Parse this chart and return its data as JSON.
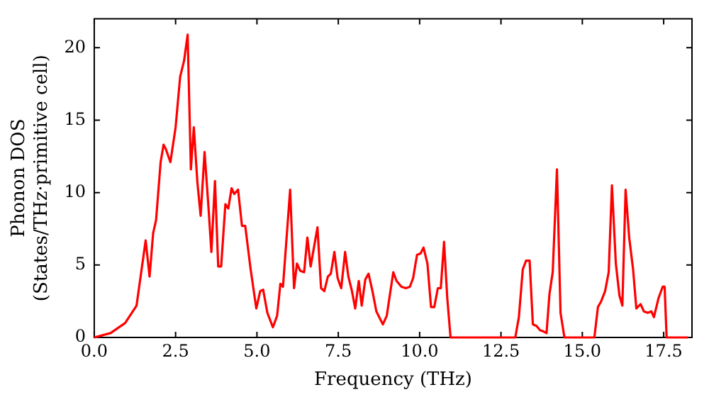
{
  "chart_data": {
    "type": "line",
    "xlabel": "Frequency (THz)",
    "ylabel": "Phonon DOS\n(States/THz·primitive cell)",
    "x": [
      0,
      0.5,
      0.95,
      1.3,
      1.58,
      1.7,
      1.81,
      1.9,
      2.04,
      2.13,
      2.2,
      2.34,
      2.5,
      2.64,
      2.76,
      2.87,
      2.97,
      3.06,
      3.17,
      3.27,
      3.39,
      3.51,
      3.6,
      3.71,
      3.81,
      3.9,
      4.03,
      4.12,
      4.22,
      4.3,
      4.42,
      4.54,
      4.64,
      4.8,
      4.98,
      5.1,
      5.19,
      5.32,
      5.49,
      5.62,
      5.72,
      5.8,
      6.02,
      6.14,
      6.23,
      6.33,
      6.45,
      6.55,
      6.65,
      6.86,
      6.97,
      7.07,
      7.18,
      7.27,
      7.38,
      7.48,
      7.59,
      7.71,
      7.81,
      7.92,
      8.02,
      8.13,
      8.22,
      8.33,
      8.43,
      8.55,
      8.67,
      8.87,
      8.99,
      9.19,
      9.29,
      9.44,
      9.58,
      9.7,
      9.8,
      9.92,
      10.03,
      10.12,
      10.24,
      10.35,
      10.45,
      10.56,
      10.65,
      10.75,
      10.85,
      10.95,
      12.94,
      13.05,
      13.17,
      13.27,
      13.38,
      13.48,
      13.59,
      13.7,
      13.82,
      13.9,
      13.99,
      14.09,
      14.22,
      14.33,
      14.45,
      15.37,
      15.48,
      15.58,
      15.7,
      15.81,
      15.91,
      16.03,
      16.14,
      16.23,
      16.33,
      16.44,
      16.56,
      16.66,
      16.79,
      16.89,
      17.01,
      17.12,
      17.2,
      17.34,
      17.47,
      17.53,
      17.59,
      18.25
    ],
    "series": [
      {
        "color": "#ff0000",
        "values": [
          0,
          0.3,
          1.0,
          2.2,
          6.7,
          4.2,
          7.2,
          8.1,
          12.1,
          13.3,
          13.0,
          12.1,
          14.5,
          18.0,
          19.1,
          20.9,
          11.6,
          14.5,
          10.7,
          8.4,
          12.8,
          9.0,
          5.9,
          10.8,
          4.9,
          4.9,
          9.2,
          8.9,
          10.3,
          9.9,
          10.2,
          7.7,
          7.7,
          4.8,
          2.0,
          3.2,
          3.3,
          1.7,
          0.7,
          1.5,
          3.7,
          3.5,
          10.2,
          3.4,
          5.1,
          4.6,
          4.5,
          6.9,
          4.9,
          7.6,
          3.4,
          3.2,
          4.2,
          4.4,
          5.9,
          4.1,
          3.4,
          5.9,
          4.2,
          3.2,
          2.0,
          3.9,
          2.2,
          4.0,
          4.4,
          3.2,
          1.8,
          0.9,
          1.5,
          4.5,
          3.9,
          3.5,
          3.4,
          3.5,
          4.1,
          5.7,
          5.8,
          6.2,
          5.1,
          2.1,
          2.1,
          3.4,
          3.4,
          6.6,
          2.7,
          0,
          0,
          1.4,
          4.7,
          5.3,
          5.3,
          0.9,
          0.8,
          0.5,
          0.4,
          0.3,
          3.0,
          4.5,
          11.6,
          1.7,
          0,
          0,
          2.1,
          2.5,
          3.2,
          4.5,
          10.5,
          5.1,
          2.9,
          2.2,
          10.2,
          6.9,
          4.7,
          2.0,
          2.3,
          1.8,
          1.7,
          1.8,
          1.4,
          2.7,
          3.5,
          3.5,
          0,
          0
        ]
      }
    ],
    "xlim": [
      0,
      18.37
    ],
    "xticks": [
      {
        "value": 0,
        "label": "0.0"
      },
      {
        "value": 2.5,
        "label": "2.5"
      },
      {
        "value": 5,
        "label": "5.0"
      },
      {
        "value": 7.5,
        "label": "7.5"
      },
      {
        "value": 10,
        "label": "10.0"
      },
      {
        "value": 12.5,
        "label": "12.5"
      },
      {
        "value": 15,
        "label": "15.0"
      },
      {
        "value": 17.5,
        "label": "17.5"
      }
    ],
    "ylim": [
      0,
      22
    ],
    "yticks": [
      0,
      5,
      10,
      15,
      20
    ],
    "grid": false,
    "legend": false,
    "marker": "none",
    "line_style": "solid"
  }
}
